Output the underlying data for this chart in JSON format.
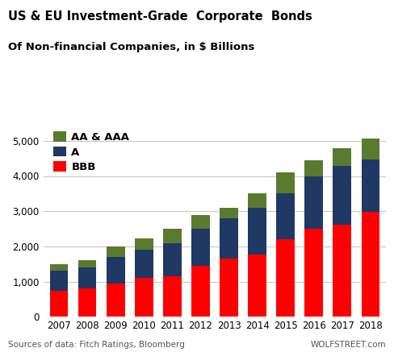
{
  "years": [
    "2007",
    "2008",
    "2009",
    "2010",
    "2011",
    "2012",
    "2013",
    "2014",
    "2015",
    "2016",
    "2017",
    "2018"
  ],
  "BBB": [
    750,
    800,
    950,
    1100,
    1150,
    1450,
    1650,
    1775,
    2200,
    2500,
    2625,
    2975
  ],
  "A": [
    550,
    600,
    750,
    800,
    950,
    1050,
    1150,
    1325,
    1300,
    1500,
    1650,
    1500
  ],
  "AA_AAA": [
    200,
    200,
    300,
    325,
    400,
    400,
    300,
    400,
    600,
    450,
    525,
    600
  ],
  "title1": "US & EU Investment-Grade  Corporate  Bonds",
  "title2": "Of Non-financial Companies, in $ Billions",
  "bar_colors": {
    "BBB": "#ff0000",
    "A": "#1f3864",
    "AA_AAA": "#5a7a2e"
  },
  "ylim": [
    0,
    5500
  ],
  "yticks": [
    0,
    1000,
    2000,
    3000,
    4000,
    5000
  ],
  "ytick_labels": [
    "0",
    "1,000",
    "2,000",
    "3,000",
    "4,000",
    "5,000"
  ],
  "footer_left": "Sources of data: Fitch Ratings, Bloomberg",
  "footer_right": "WOLFSTREET.com",
  "bg_color": "#ffffff",
  "grid_color": "#c8c8c8"
}
